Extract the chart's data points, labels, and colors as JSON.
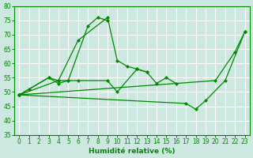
{
  "title": "",
  "xlabel": "Humidité relative (%)",
  "ylabel": "",
  "bg_color": "#cce8e0",
  "grid_color": "#ffffff",
  "line_color": "#008800",
  "xlim": [
    -0.5,
    23.5
  ],
  "ylim": [
    35,
    80
  ],
  "yticks": [
    35,
    40,
    45,
    50,
    55,
    60,
    65,
    70,
    75,
    80
  ],
  "xticks": [
    0,
    1,
    2,
    3,
    4,
    5,
    6,
    7,
    8,
    9,
    10,
    11,
    12,
    13,
    14,
    15,
    16,
    17,
    18,
    19,
    20,
    21,
    22,
    23
  ],
  "series": [
    {
      "x": [
        0,
        1,
        3,
        4,
        5,
        7,
        8,
        9
      ],
      "y": [
        49,
        51,
        55,
        53,
        54,
        73,
        76,
        75
      ]
    },
    {
      "x": [
        0,
        3,
        4,
        5,
        6,
        9,
        10,
        12,
        13
      ],
      "y": [
        49,
        55,
        54,
        54,
        54,
        54,
        50,
        58,
        57
      ]
    },
    {
      "x": [
        0,
        4,
        6,
        9,
        10,
        11,
        12,
        13,
        14,
        15,
        16
      ],
      "y": [
        49,
        54,
        68,
        76,
        61,
        59,
        58,
        57,
        53,
        55,
        53
      ]
    },
    {
      "x": [
        0,
        17,
        18,
        19,
        21,
        23
      ],
      "y": [
        49,
        46,
        44,
        47,
        54,
        71
      ]
    },
    {
      "x": [
        0,
        20,
        22,
        23
      ],
      "y": [
        49,
        54,
        64,
        71
      ]
    }
  ]
}
